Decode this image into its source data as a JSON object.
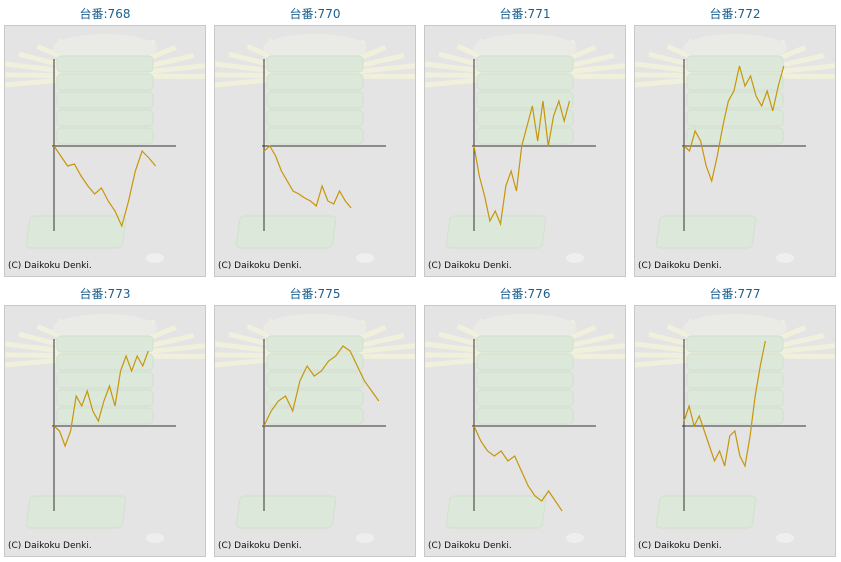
{
  "chart_data": [
    {
      "type": "line",
      "title": "台番:768",
      "credit": "(C) Daikoku Denki.",
      "color": "#c8960a",
      "xlim": [
        0,
        18
      ],
      "ylim": [
        -85,
        87
      ],
      "values": [
        0,
        -10,
        -20,
        -18,
        -30,
        -40,
        -48,
        -42,
        -55,
        -65,
        -80,
        -55,
        -25,
        -5,
        -12,
        -20
      ]
    },
    {
      "type": "line",
      "title": "台番:770",
      "credit": "(C) Daikoku Denki.",
      "color": "#c8960a",
      "xlim": [
        0,
        21
      ],
      "ylim": [
        -85,
        87
      ],
      "values": [
        -5,
        0,
        -10,
        -25,
        -35,
        -45,
        -48,
        -52,
        -55,
        -60,
        -40,
        -55,
        -58,
        -45,
        -55,
        -62
      ]
    },
    {
      "type": "line",
      "title": "台番:771",
      "credit": "(C) Daikoku Denki.",
      "color": "#c8960a",
      "xlim": [
        0,
        23
      ],
      "ylim": [
        -85,
        87
      ],
      "values": [
        0,
        -30,
        -50,
        -75,
        -65,
        -78,
        -40,
        -25,
        -45,
        0,
        20,
        40,
        5,
        45,
        0,
        30,
        45,
        25,
        45
      ]
    },
    {
      "type": "line",
      "title": "台番:772",
      "credit": "(C) Daikoku Denki.",
      "color": "#c8960a",
      "xlim": [
        0,
        22
      ],
      "ylim": [
        -85,
        87
      ],
      "values": [
        0,
        -5,
        15,
        5,
        -20,
        -35,
        -10,
        20,
        45,
        55,
        80,
        60,
        70,
        50,
        40,
        55,
        35,
        60,
        80
      ]
    },
    {
      "type": "line",
      "title": "台番:773",
      "credit": "(C) Daikoku Denki.",
      "color": "#c8960a",
      "xlim": [
        0,
        22
      ],
      "ylim": [
        -85,
        87
      ],
      "values": [
        0,
        -5,
        -20,
        -5,
        30,
        20,
        35,
        15,
        5,
        25,
        40,
        20,
        55,
        70,
        55,
        70,
        60,
        75
      ]
    },
    {
      "type": "line",
      "title": "台番:775",
      "credit": "(C) Daikoku Denki.",
      "color": "#c8960a",
      "xlim": [
        0,
        17
      ],
      "ylim": [
        -85,
        87
      ],
      "values": [
        0,
        15,
        25,
        30,
        15,
        45,
        60,
        50,
        55,
        65,
        70,
        80,
        75,
        60,
        45,
        35,
        25
      ]
    },
    {
      "type": "line",
      "title": "台番:776",
      "credit": "(C) Daikoku Denki.",
      "color": "#c8960a",
      "xlim": [
        0,
        18
      ],
      "ylim": [
        -85,
        87
      ],
      "values": [
        0,
        -15,
        -25,
        -30,
        -25,
        -35,
        -30,
        -45,
        -60,
        -70,
        -75,
        -65,
        -75,
        -85
      ]
    },
    {
      "type": "line",
      "title": "台番:777",
      "credit": "(C) Daikoku Denki.",
      "color": "#c8960a",
      "xlim": [
        0,
        24
      ],
      "ylim": [
        -85,
        87
      ],
      "values": [
        5,
        20,
        0,
        10,
        -5,
        -20,
        -35,
        -25,
        -40,
        -10,
        -5,
        -30,
        -40,
        -10,
        30,
        60,
        85
      ]
    }
  ]
}
